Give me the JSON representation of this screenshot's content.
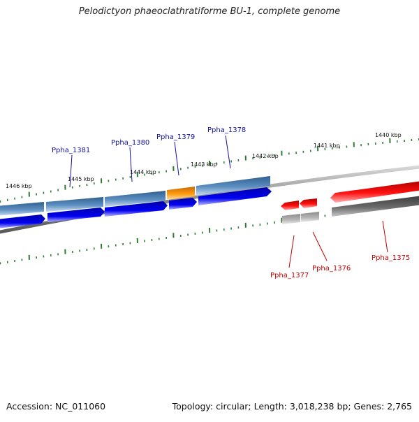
{
  "title": "Pelodictyon phaeoclathratiforme BU-1, complete genome",
  "accession": "Accession: NC_011060",
  "summary": "Topology: circular; Length: 3,018,238 bp; Genes: 2,765",
  "colors": {
    "tick": "#2e7d32",
    "genome_line": "#8a8a8a",
    "forward_cds": "#0000ee",
    "forward_gene": "#4f80b5",
    "reverse_cds": "#ee0000",
    "reverse_gene": "#606060",
    "highlight": "#ff9900",
    "upper_label": "#1010a0",
    "lower_label": "#c00000"
  },
  "kbp_labels": [
    "1446 kbp",
    "1445 kbp",
    "1444 kbp",
    "1443 kbp",
    "1442 kbp",
    "1441 kbp",
    "1440 kbp"
  ],
  "gene_labels_upper": [
    "Ppha_1381",
    "Ppha_1380",
    "Ppha_1379",
    "Ppha_1378"
  ],
  "gene_labels_lower": [
    "Ppha_1377",
    "Ppha_1376",
    "Ppha_1375"
  ]
}
